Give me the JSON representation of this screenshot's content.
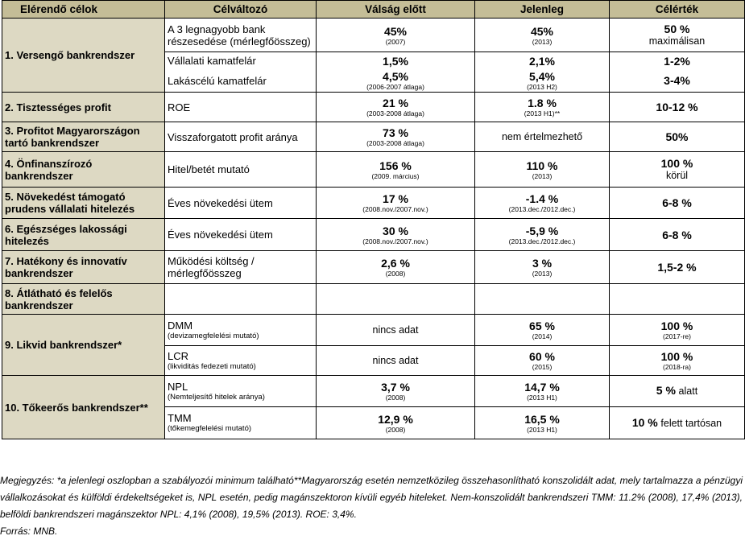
{
  "headers": [
    "Elérendő célok",
    "Célváltozó",
    "Válság előtt",
    "Jelenleg",
    "Célérték"
  ],
  "rows": {
    "r1": {
      "goal": "1. Versengő bankrendszer",
      "a": {
        "var": "A 3 legnagyobb bank részesedése (mérlegfőösszeg)",
        "before": "45%",
        "before_note": "(2007)",
        "now": "45%",
        "now_note": "(2013)",
        "target": "50 %",
        "target_note": "maximálisan"
      },
      "b": {
        "var": "Vállalati kamatfelár",
        "before": "1,5%",
        "now": "2,1%",
        "target": "1-2%"
      },
      "c": {
        "var": "Lakáscélú kamatfelár",
        "before": "4,5%",
        "before_note": "(2006-2007 átlaga)",
        "now": "5,4%",
        "now_note": "(2013 H2)",
        "target": "3-4%"
      }
    },
    "r2": {
      "goal": "2. Tisztességes profit",
      "var": "ROE",
      "before": "21 %",
      "before_note": "(2003-2008 átlaga)",
      "now": "1.8 %",
      "now_note": "(2013 H1)**",
      "target": "10-12 %"
    },
    "r3": {
      "goal": "3. Profitot Magyarországon tartó bankrendszer",
      "var": "Visszaforgatott profit aránya",
      "before": "73 %",
      "before_note": "(2003-2008 átlaga)",
      "now": "nem értelmezhető",
      "target": "50%"
    },
    "r4": {
      "goal": "4. Önfinanszírozó bankrendszer",
      "var": "Hitel/betét mutató",
      "before": "156 %",
      "before_note": "(2009. március)",
      "now": "110 %",
      "now_note": "(2013)",
      "target": "100 %",
      "target_note": "körül"
    },
    "r5": {
      "goal": "5. Növekedést támogató prudens vállalati hitelezés",
      "var": "Éves növekedési ütem",
      "before": "17 %",
      "before_note": "(2008.nov./2007.nov.)",
      "now": "-1.4 %",
      "now_note": "(2013.dec./2012.dec.)",
      "target": "6-8 %"
    },
    "r6": {
      "goal": "6. Egészséges lakossági hitelezés",
      "var": "Éves növekedési ütem",
      "before": "30 %",
      "before_note": "(2008.nov./2007.nov.)",
      "now": "-5,9 %",
      "now_note": "(2013.dec./2012.dec.)",
      "target": "6-8 %"
    },
    "r7": {
      "goal": "7. Hatékony és innovatív bankrendszer",
      "var": "Működési költség / mérlegfőösszeg",
      "before": "2,6 %",
      "before_note": "(2008)",
      "now": "3 %",
      "now_note": "(2013)",
      "target": "1,5-2 %"
    },
    "r8": {
      "goal": "8. Átlátható és felelős bankrendszer"
    },
    "r9": {
      "goal": "9. Likvid bankrendszer*",
      "a": {
        "var": "DMM",
        "var_note": "(devizamegfelelési mutató)",
        "before": "nincs adat",
        "now": "65 %",
        "now_note": "(2014)",
        "target": "100 %",
        "target_note": "(2017-re)"
      },
      "b": {
        "var": "LCR",
        "var_note": "(likviditás fedezeti mutató)",
        "before": "nincs adat",
        "now": "60 %",
        "now_note": "(2015)",
        "target": "100 %",
        "target_note": "(2018-ra)"
      }
    },
    "r10": {
      "goal": "10. Tőkeerős bankrendszer**",
      "a": {
        "var": "NPL",
        "var_note": "(Nemteljesítő hitelek aránya)",
        "before": "3,7 %",
        "before_note": "(2008)",
        "now": "14,7 %",
        "now_note": "(2013 H1)",
        "target": "5 %",
        "target_suffix": "alatt"
      },
      "b": {
        "var": "TMM",
        "var_note": "(tőkemegfelelési mutató)",
        "before": "12,9 %",
        "before_note": "(2008)",
        "now": "16,5 %",
        "now_note": "(2013 H1)",
        "target": "10 %",
        "target_suffix": "felett tartósan"
      }
    }
  },
  "notes": {
    "line1": "Megjegyzés: *a jelenlegi oszlopban a szabályozói minimum található**Magyarország esetén nemzetközileg összehasonlítható konszolidált adat, mely tartalmazza a pénzügyi vállalkozásokat és külföldi érdekeltségeket is, NPL esetén, pedig magánszektoron kívüli egyéb hiteleket. Nem-konszolidált bankrendszeri TMM: 11.2% (2008), 17,4% (2013), belföldi bankrendszeri magánszektor NPL: 4,1% (2008), 19,5% (2013). ROE: 3,4%.",
    "source": "Forrás: MNB."
  },
  "colors": {
    "header_bg": "#c4bd97",
    "goal_bg": "#ddd9c3"
  }
}
